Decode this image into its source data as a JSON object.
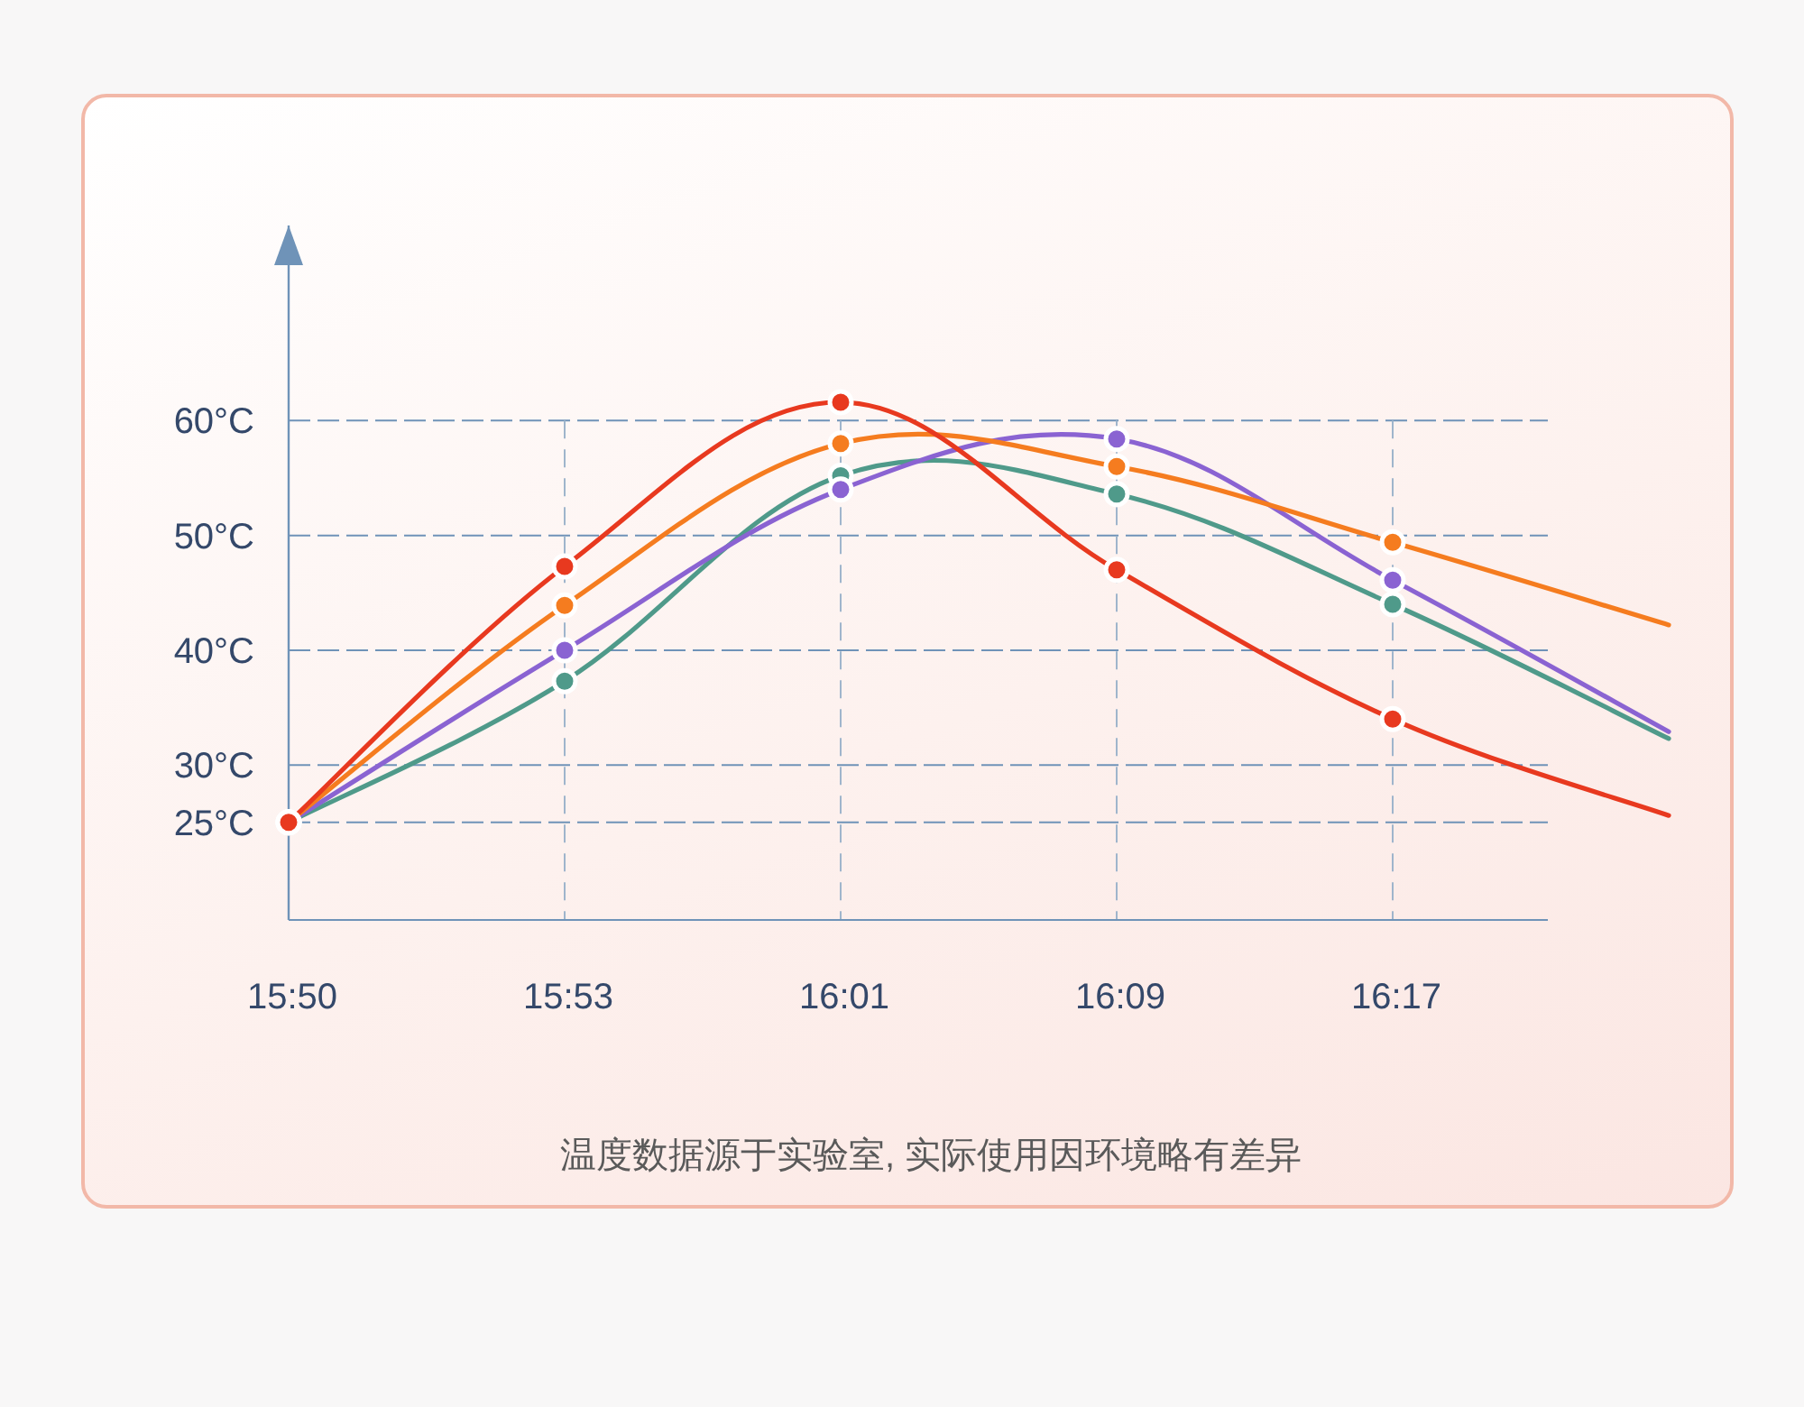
{
  "chart_data": {
    "type": "line",
    "categories": [
      "15:50",
      "15:53",
      "16:01",
      "16:09",
      "16:17",
      null
    ],
    "ylim": [
      16.5,
      77
    ],
    "yticks": [
      {
        "value": 25,
        "label": "25°C"
      },
      {
        "value": 30,
        "label": "30°C"
      },
      {
        "value": 40,
        "label": "40°C"
      },
      {
        "value": 50,
        "label": "50°C"
      },
      {
        "value": 60,
        "label": "60°C"
      }
    ],
    "grid": true,
    "marker": "circle",
    "line_style": "solid",
    "annotations": [
      "温度数据源于实验室, 实际使用因环境略有差异"
    ],
    "series": [
      {
        "color": "#4f9a8a",
        "values": [
          25,
          37.3,
          55.2,
          53.6,
          44,
          32.3
        ]
      },
      {
        "color": "#8a63d2",
        "values": [
          25,
          40,
          54,
          58.4,
          46.1,
          32.9
        ]
      },
      {
        "color": "#f57c1f",
        "values": [
          25,
          43.9,
          58,
          56,
          49.4,
          42.2
        ]
      },
      {
        "color": "#e8391f",
        "values": [
          25,
          47.3,
          61.6,
          47,
          34,
          25.6
        ]
      }
    ]
  }
}
